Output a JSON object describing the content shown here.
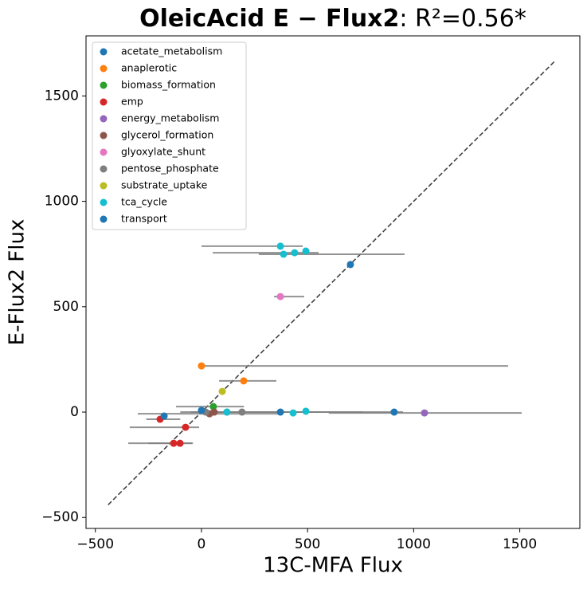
{
  "chart_data": {
    "type": "scatter",
    "title": "OleicAcid E − Flux2",
    "title_stat": ": R²=0.56*",
    "x_label": "13C-MFA Flux",
    "y_label": "E-Flux2 Flux",
    "xlim": [
      -544,
      1783
    ],
    "ylim": [
      -552,
      1785
    ],
    "xticks": [
      {
        "value": -500,
        "label": "−500"
      },
      0,
      500,
      1000,
      1500
    ],
    "yticks": [
      {
        "value": -500,
        "label": "−500"
      },
      0,
      500,
      1000,
      1500
    ],
    "legend": "upper left",
    "error_color": "#808080",
    "reference_line": {
      "x": [
        -440,
        1670
      ],
      "y": [
        -440,
        1670
      ],
      "color": "#404040"
    },
    "series": [
      {
        "name": "acetate_metabolism",
        "color": "#1f77b4",
        "x": [
          372,
          908
        ],
        "y": [
          0,
          0
        ],
        "xmin": [
          null,
          0
        ],
        "xmax": [
          null,
          950
        ]
      },
      {
        "name": "anaplerotic",
        "color": "#ff7f0e",
        "x": [
          0,
          199
        ],
        "y": [
          219,
          148
        ],
        "xmin": [
          0,
          83
        ],
        "xmax": [
          1445,
          353
        ]
      },
      {
        "name": "biomass_formation",
        "color": "#2ca02c",
        "x": [
          56
        ],
        "y": [
          26
        ],
        "xmin": [
          -120
        ],
        "xmax": [
          200
        ]
      },
      {
        "name": "emp",
        "color": "#d62728",
        "x": [
          -75,
          -131,
          -101,
          -195
        ],
        "y": [
          -72,
          -148,
          -148,
          -34
        ],
        "xmin": [
          -338,
          -250,
          -345,
          -260
        ],
        "xmax": [
          -11,
          -40,
          -45,
          -100
        ]
      },
      {
        "name": "energy_metabolism",
        "color": "#9467bd",
        "x": [
          1051
        ],
        "y": [
          -4
        ],
        "xmin": [
          600
        ],
        "xmax": [
          1509
        ]
      },
      {
        "name": "glycerol_formation",
        "color": "#8c564b",
        "x": [
          38,
          60
        ],
        "y": [
          -8,
          0
        ],
        "xmin": [
          -300,
          -50
        ],
        "xmax": [
          380,
          160
        ]
      },
      {
        "name": "glyoxylate_shunt",
        "color": "#e377c2",
        "x": [
          372
        ],
        "y": [
          548
        ],
        "xmin": [
          342
        ],
        "xmax": [
          484
        ]
      },
      {
        "name": "pentose_phosphate",
        "color": "#7f7f7f",
        "x": [
          191,
          120,
          20
        ],
        "y": [
          0,
          0,
          0
        ],
        "xmin": [
          -50,
          -100,
          -40
        ],
        "xmax": [
          760,
          560,
          220
        ]
      },
      {
        "name": "substrate_uptake",
        "color": "#bcbd22",
        "x": [
          98
        ],
        "y": [
          98
        ],
        "xmin": [
          null
        ],
        "xmax": [
          null
        ]
      },
      {
        "name": "tca_cycle",
        "color": "#17becf",
        "x": [
          372,
          387,
          439,
          492,
          492,
          432,
          120
        ],
        "y": [
          787,
          749,
          756,
          764,
          4,
          -4,
          0
        ],
        "xmin": [
          0,
          270,
          53,
          null,
          null,
          null,
          null
        ],
        "xmax": [
          477,
          957,
          552,
          null,
          null,
          null,
          null
        ]
      },
      {
        "name": "transport",
        "color": "#1f77b4",
        "x": [
          702,
          -176,
          0
        ],
        "y": [
          700,
          -19,
          8
        ],
        "xmin": [
          null,
          null,
          null
        ],
        "xmax": [
          null,
          null,
          null
        ]
      }
    ]
  }
}
